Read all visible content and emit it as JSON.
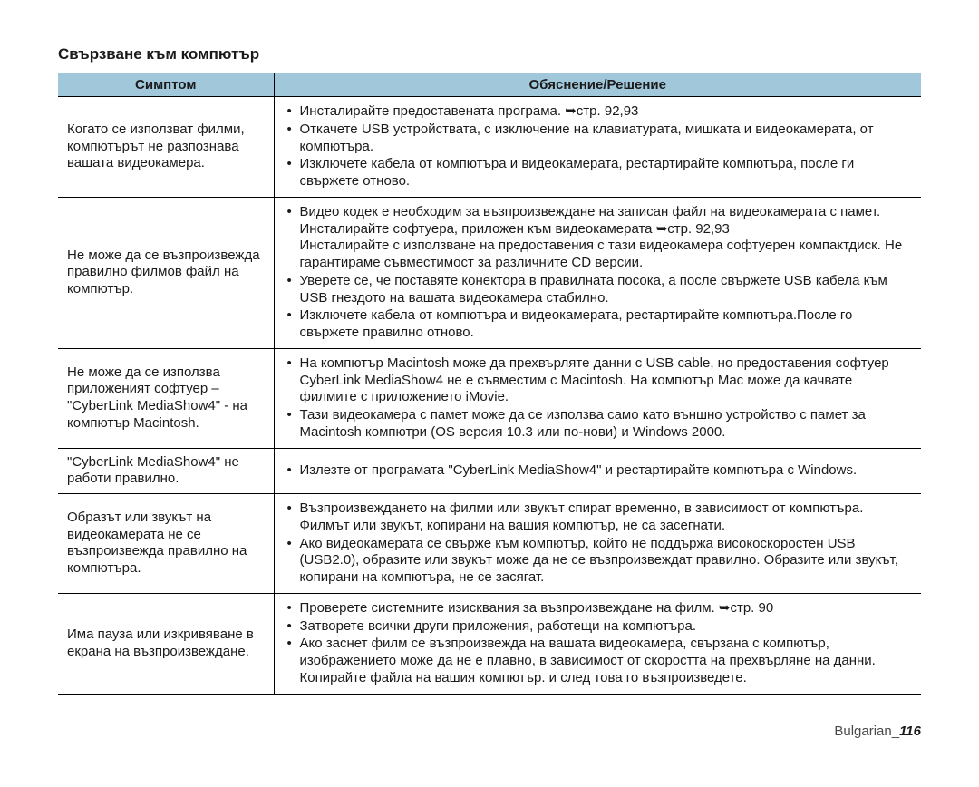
{
  "heading": "Свързване към компютър",
  "header": {
    "symptom": "Симптом",
    "solution": "Обяснение/Решение"
  },
  "rows": [
    {
      "symptom": "Когато се използват филми, компютърът не разпознава вашата видеокамера.",
      "items": [
        "Инсталирайте предоставената програма. ➥стр. 92,93",
        "Откачете USB устройствата, с изключение на клавиатурата, мишката и видеокамерата, от компютъра.",
        "Изключете кабела от компютъра и видеокамерата, рестартирайте компютъра, после ги свържете отново."
      ]
    },
    {
      "symptom": "Не може да се възпроизвежда правилно филмов файл на компютър.",
      "items": [
        "Видео кодек е необходим за възпроизвеждане на записан файл на видеокамерата с памет. Инсталирайте софтуера, приложен към видеокамерата ➥стр. 92,93\nИнсталирайте с използване на предоставения с тази видеокамера софтуерен компактдиск. Не гарантираме съвместимост за различните CD версии.",
        "Уверете се, че поставяте конектора в правилната посока, а после свържете USB кабела към USB гнездото на вашата видеокамера стабилно.",
        "Изключете кабела от компютъра и видеокамерата, рестартирайте компютъра.После го свържете правилно отново."
      ]
    },
    {
      "symptom": "Не може да се използва приложеният софтуер – \"CyberLink MediaShow4\" - на компютър Macintosh.",
      "items": [
        "На компютър Macintosh може да прехвърляте данни с USB cable, но предоставения софтуер CyberLink MediaShow4 не е съвместим с Macintosh. На компютър Mac може да качвате филмите с приложението iMovie.",
        "Тази видеокамера с памет може да се използва само като външно устройство с памет за Macintosh компютри (OS версия 10.3 или по-нови) и Windows 2000."
      ]
    },
    {
      "symptom": "\"CyberLink MediaShow4\" не работи правилно.",
      "items": [
        "Излезте от програмата \"CyberLink MediaShow4\" и рестартирайте компютъра с Windows."
      ]
    },
    {
      "symptom": "Образът или звукът на видеокамерата не се възпроизвежда правилно на компютъра.",
      "items": [
        "Възпроизвеждането на филми или звукът спират временно, в зависимост от компютъра. Филмът или звукът, копирани на вашия компютър, не са засегнати.",
        "Ако видеокамерата се свърже към компютър, който не поддържа високоскоростен USB (USB2.0), образите или звукът може да не се възпроизвеждат правилно. Образите или звукът, копирани на компютъра, не се засягат."
      ]
    },
    {
      "symptom": "Има пауза или изкривяване в екрана на възпроизвеждане.",
      "items": [
        "Проверете системните изисквания за възпроизвеждане на филм. ➥стр. 90",
        "Затворете всички други приложения, работещи на компютъра.",
        "Ако заснет филм се възпроизвежда на вашата видеокамера, свързана с компютър, изображението може да не е плавно, в зависимост от скоростта на прехвърляне на данни. Копирайте файла на вашия компютър. и след това го възпроизведете."
      ]
    }
  ],
  "footer": {
    "lang": "Bulgarian_",
    "page": "116"
  },
  "colors": {
    "header_bg": "#a1c7da",
    "text": "#1a1a1a",
    "border": "#000000",
    "bg": "#ffffff"
  }
}
